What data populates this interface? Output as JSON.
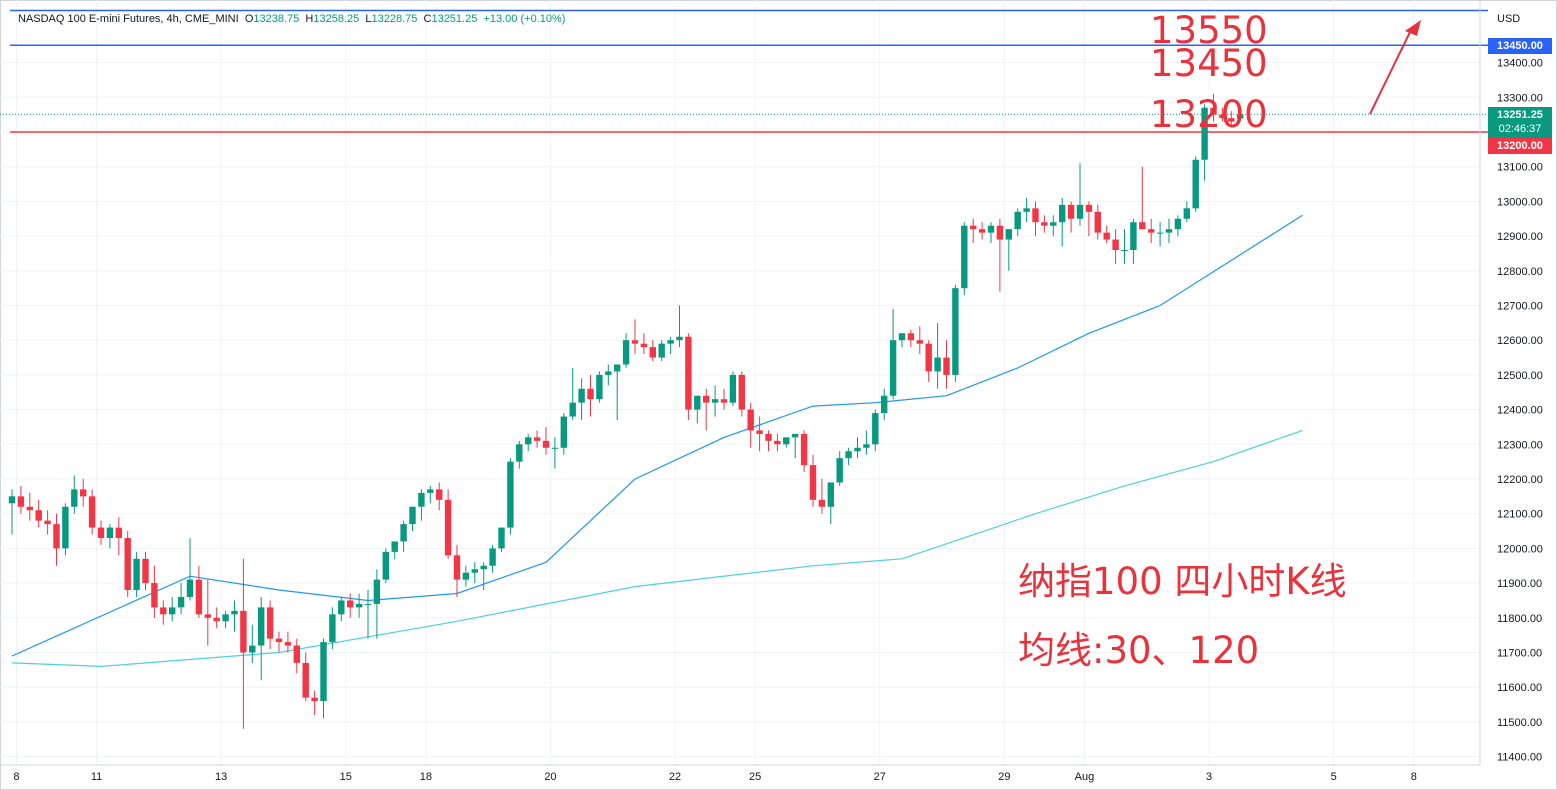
{
  "header": {
    "symbol": "NASDAQ 100 E-mini Futures, 4h, CME_MINI",
    "open_label": "O",
    "open": "13238.75",
    "high_label": "H",
    "high": "13258.25",
    "low_label": "L",
    "low": "13228.75",
    "close_label": "C",
    "close": "13251.25",
    "change": "+13.00 (+0.10%)"
  },
  "axis_unit": "USD",
  "price_tags": {
    "top_line": "13450.00",
    "current_price": "13251.25",
    "countdown": "02:46:37",
    "red_line": "13200.00"
  },
  "annotations": {
    "target_13550": "13550",
    "target_13450": "13450",
    "level_13200": "13200",
    "title_cn": "纳指100 四小时K线",
    "ma_cn": "均线:30、120"
  },
  "colors": {
    "up": "#089981",
    "down": "#f23645",
    "ma30": "#2196f3",
    "ma120": "#4dd0e1",
    "blue_line": "#2962ff",
    "red_line": "#f23645",
    "annotation": "#e8323c"
  },
  "chart_data": {
    "type": "candlestick",
    "y_ticks": [
      11400,
      11500,
      11600,
      11700,
      11800,
      11900,
      12000,
      12100,
      12200,
      12300,
      12400,
      12500,
      12600,
      12700,
      12800,
      12900,
      13000,
      13100,
      13200,
      13300,
      13400
    ],
    "y_tick_labels": [
      "11400.00",
      "11500.00",
      "11600.00",
      "11700.00",
      "11800.00",
      "11900.00",
      "12000.00",
      "12100.00",
      "12200.00",
      "12300.00",
      "12400.00",
      "12500.00",
      "12600.00",
      "12700.00",
      "12800.00",
      "12900.00",
      "13000.00",
      "13100.00",
      "13200.00",
      "13300.00",
      "13400.00"
    ],
    "x_ticks": [
      {
        "label": "8",
        "i": 0.5
      },
      {
        "label": "11",
        "i": 9.5
      },
      {
        "label": "13",
        "i": 23.5
      },
      {
        "label": "15",
        "i": 37.5
      },
      {
        "label": "18",
        "i": 46.5
      },
      {
        "label": "20",
        "i": 60.5
      },
      {
        "label": "22",
        "i": 74.5
      },
      {
        "label": "25",
        "i": 83.5
      },
      {
        "label": "27",
        "i": 97.5
      },
      {
        "label": "29",
        "i": 111.5
      },
      {
        "label": "Aug",
        "i": 120.5
      },
      {
        "label": "3",
        "i": 134.5
      },
      {
        "label": "5",
        "i": 148.5
      },
      {
        "label": "8",
        "i": 157.5
      }
    ],
    "horizontal_lines": [
      {
        "price": 13550,
        "color": "#2962ff"
      },
      {
        "price": 13450,
        "color": "#2962ff"
      },
      {
        "price": 13200,
        "color": "#f23645"
      }
    ],
    "current_price": 13251.25,
    "ohlc": [
      [
        12130,
        12170,
        12040,
        12150
      ],
      [
        12150,
        12180,
        12100,
        12120
      ],
      [
        12120,
        12160,
        12080,
        12110
      ],
      [
        12110,
        12140,
        12060,
        12080
      ],
      [
        12080,
        12110,
        12040,
        12070
      ],
      [
        12070,
        12100,
        11950,
        12000
      ],
      [
        12000,
        12130,
        11980,
        12120
      ],
      [
        12120,
        12210,
        12100,
        12170
      ],
      [
        12170,
        12200,
        12120,
        12150
      ],
      [
        12150,
        12170,
        12040,
        12060
      ],
      [
        12060,
        12080,
        12010,
        12030
      ],
      [
        12030,
        12070,
        12000,
        12060
      ],
      [
        12060,
        12090,
        11980,
        12030
      ],
      [
        12030,
        12050,
        11860,
        11880
      ],
      [
        11880,
        11990,
        11860,
        11970
      ],
      [
        11970,
        11990,
        11880,
        11900
      ],
      [
        11900,
        11950,
        11800,
        11830
      ],
      [
        11830,
        11850,
        11780,
        11810
      ],
      [
        11810,
        11860,
        11790,
        11830
      ],
      [
        11830,
        11900,
        11810,
        11860
      ],
      [
        11860,
        12030,
        11850,
        11910
      ],
      [
        11910,
        11950,
        11800,
        11810
      ],
      [
        11810,
        11910,
        11720,
        11800
      ],
      [
        11800,
        11830,
        11770,
        11790
      ],
      [
        11790,
        11820,
        11770,
        11810
      ],
      [
        11810,
        11850,
        11760,
        11820
      ],
      [
        11820,
        11970,
        11480,
        11700
      ],
      [
        11700,
        11780,
        11670,
        11720
      ],
      [
        11720,
        11860,
        11620,
        11830
      ],
      [
        11830,
        11850,
        11710,
        11740
      ],
      [
        11740,
        11760,
        11700,
        11730
      ],
      [
        11730,
        11760,
        11700,
        11720
      ],
      [
        11720,
        11740,
        11640,
        11670
      ],
      [
        11670,
        11700,
        11560,
        11570
      ],
      [
        11570,
        11590,
        11520,
        11560
      ],
      [
        11560,
        11740,
        11510,
        11730
      ],
      [
        11730,
        11830,
        11710,
        11810
      ],
      [
        11810,
        11860,
        11790,
        11850
      ],
      [
        11850,
        11870,
        11800,
        11830
      ],
      [
        11830,
        11870,
        11800,
        11840
      ],
      [
        11840,
        11880,
        11740,
        11840
      ],
      [
        11840,
        11940,
        11740,
        11910
      ],
      [
        11910,
        12000,
        11900,
        11990
      ],
      [
        11990,
        12020,
        11970,
        12020
      ],
      [
        12020,
        12080,
        11990,
        12070
      ],
      [
        12070,
        12120,
        12050,
        12120
      ],
      [
        12120,
        12170,
        12080,
        12160
      ],
      [
        12160,
        12180,
        12130,
        12170
      ],
      [
        12170,
        12190,
        12110,
        12140
      ],
      [
        12140,
        12170,
        11970,
        11980
      ],
      [
        11980,
        12010,
        11860,
        11910
      ],
      [
        11910,
        11950,
        11890,
        11930
      ],
      [
        11930,
        11960,
        11900,
        11940
      ],
      [
        11940,
        11960,
        11880,
        11950
      ],
      [
        11950,
        12010,
        11930,
        12000
      ],
      [
        12000,
        12060,
        11990,
        12060
      ],
      [
        12060,
        12260,
        12040,
        12250
      ],
      [
        12250,
        12310,
        12230,
        12300
      ],
      [
        12300,
        12330,
        12280,
        12320
      ],
      [
        12320,
        12340,
        12290,
        12310
      ],
      [
        12310,
        12350,
        12270,
        12290
      ],
      [
        12290,
        12320,
        12230,
        12290
      ],
      [
        12290,
        12390,
        12270,
        12380
      ],
      [
        12380,
        12520,
        12370,
        12420
      ],
      [
        12420,
        12490,
        12370,
        12460
      ],
      [
        12460,
        12500,
        12380,
        12430
      ],
      [
        12430,
        12510,
        12420,
        12500
      ],
      [
        12500,
        12530,
        12470,
        12510
      ],
      [
        12510,
        12530,
        12370,
        12530
      ],
      [
        12530,
        12620,
        12520,
        12600
      ],
      [
        12600,
        12660,
        12560,
        12590
      ],
      [
        12590,
        12620,
        12560,
        12580
      ],
      [
        12580,
        12600,
        12540,
        12550
      ],
      [
        12550,
        12600,
        12540,
        12590
      ],
      [
        12590,
        12610,
        12560,
        12600
      ],
      [
        12600,
        12700,
        12580,
        12610
      ],
      [
        12610,
        12620,
        12370,
        12400
      ],
      [
        12400,
        12440,
        12360,
        12440
      ],
      [
        12440,
        12460,
        12340,
        12420
      ],
      [
        12420,
        12470,
        12380,
        12430
      ],
      [
        12430,
        12460,
        12400,
        12420
      ],
      [
        12420,
        12510,
        12410,
        12500
      ],
      [
        12500,
        12510,
        12380,
        12400
      ],
      [
        12400,
        12420,
        12290,
        12340
      ],
      [
        12340,
        12380,
        12280,
        12330
      ],
      [
        12330,
        12340,
        12280,
        12310
      ],
      [
        12310,
        12330,
        12280,
        12300
      ],
      [
        12300,
        12320,
        12290,
        12320
      ],
      [
        12320,
        12330,
        12260,
        12330
      ],
      [
        12330,
        12340,
        12220,
        12240
      ],
      [
        12240,
        12270,
        12120,
        12140
      ],
      [
        12140,
        12200,
        12100,
        12120
      ],
      [
        12120,
        12190,
        12070,
        12190
      ],
      [
        12190,
        12280,
        12180,
        12260
      ],
      [
        12260,
        12290,
        12240,
        12280
      ],
      [
        12280,
        12320,
        12260,
        12290
      ],
      [
        12290,
        12340,
        12270,
        12300
      ],
      [
        12300,
        12400,
        12280,
        12390
      ],
      [
        12390,
        12460,
        12370,
        12440
      ],
      [
        12440,
        12690,
        12430,
        12600
      ],
      [
        12600,
        12620,
        12580,
        12620
      ],
      [
        12620,
        12630,
        12580,
        12600
      ],
      [
        12600,
        12640,
        12560,
        12590
      ],
      [
        12590,
        12600,
        12480,
        12510
      ],
      [
        12510,
        12650,
        12460,
        12550
      ],
      [
        12550,
        12600,
        12460,
        12500
      ],
      [
        12500,
        12760,
        12480,
        12750
      ],
      [
        12750,
        12940,
        12730,
        12930
      ],
      [
        12930,
        12950,
        12880,
        12920
      ],
      [
        12920,
        12940,
        12890,
        12910
      ],
      [
        12910,
        12940,
        12880,
        12930
      ],
      [
        12930,
        12950,
        12740,
        12890
      ],
      [
        12890,
        12920,
        12800,
        12920
      ],
      [
        12920,
        12980,
        12900,
        12970
      ],
      [
        12970,
        13010,
        12940,
        12980
      ],
      [
        12980,
        13000,
        12900,
        12940
      ],
      [
        12940,
        12960,
        12910,
        12930
      ],
      [
        12930,
        12960,
        12900,
        12940
      ],
      [
        12940,
        13010,
        12870,
        12990
      ],
      [
        12990,
        13000,
        12910,
        12950
      ],
      [
        12950,
        13110,
        12930,
        12990
      ],
      [
        12990,
        13000,
        12900,
        12970
      ],
      [
        12970,
        12990,
        12890,
        12910
      ],
      [
        12910,
        12930,
        12880,
        12890
      ],
      [
        12890,
        12920,
        12820,
        12860
      ],
      [
        12860,
        12920,
        12820,
        12860
      ],
      [
        12860,
        12950,
        12820,
        12940
      ],
      [
        12940,
        13100,
        12920,
        12920
      ],
      [
        12920,
        12950,
        12880,
        12910
      ],
      [
        12910,
        12940,
        12870,
        12910
      ],
      [
        12910,
        12950,
        12880,
        12920
      ],
      [
        12920,
        12960,
        12900,
        12950
      ],
      [
        12950,
        13000,
        12940,
        12980
      ],
      [
        12980,
        13130,
        12970,
        13120
      ],
      [
        13120,
        13280,
        13060,
        13270
      ],
      [
        13270,
        13310,
        13230,
        13250
      ],
      [
        13250,
        13270,
        13230,
        13240
      ],
      [
        13240,
        13260,
        13220,
        13230
      ],
      [
        13238.75,
        13258.25,
        13228.75,
        13251.25
      ]
    ],
    "ma30": [
      [
        0,
        11690
      ],
      [
        20,
        11920
      ],
      [
        30,
        11880
      ],
      [
        40,
        11850
      ],
      [
        50,
        11870
      ],
      [
        60,
        11960
      ],
      [
        70,
        12200
      ],
      [
        80,
        12320
      ],
      [
        90,
        12410
      ],
      [
        97,
        12420
      ],
      [
        105,
        12440
      ],
      [
        113,
        12520
      ],
      [
        121,
        12620
      ],
      [
        129,
        12700
      ],
      [
        137,
        12830
      ],
      [
        145,
        12960
      ]
    ],
    "ma120": [
      [
        0,
        11670
      ],
      [
        10,
        11660
      ],
      [
        30,
        11700
      ],
      [
        50,
        11790
      ],
      [
        70,
        11890
      ],
      [
        90,
        11950
      ],
      [
        100,
        11970
      ],
      [
        115,
        12100
      ],
      [
        125,
        12180
      ],
      [
        135,
        12250
      ],
      [
        145,
        12340
      ]
    ]
  }
}
